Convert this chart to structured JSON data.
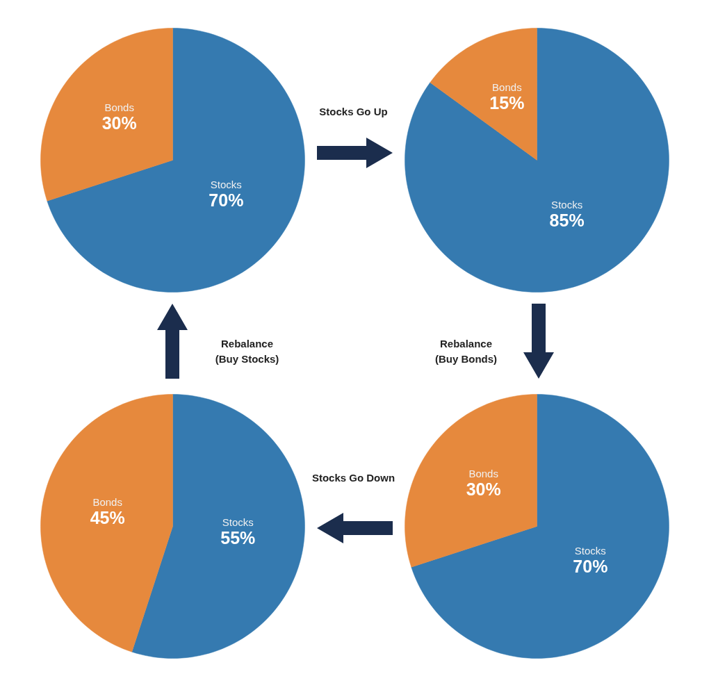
{
  "chart_data": [
    {
      "type": "pie",
      "categories": [
        "Stocks",
        "Bonds"
      ],
      "values": [
        70,
        30
      ],
      "colors": [
        "#357ab0",
        "#e6893d"
      ],
      "value_labels": [
        "70%",
        "30%"
      ],
      "annotations": [
        "Stocks Go Up"
      ]
    },
    {
      "type": "pie",
      "categories": [
        "Stocks",
        "Bonds"
      ],
      "values": [
        85,
        15
      ],
      "colors": [
        "#357ab0",
        "#e6893d"
      ],
      "value_labels": [
        "85%",
        "15%"
      ],
      "annotations": [
        "Rebalance\n(Buy Bonds)"
      ]
    },
    {
      "type": "pie",
      "categories": [
        "Stocks",
        "Bonds"
      ],
      "values": [
        55,
        45
      ],
      "colors": [
        "#357ab0",
        "#e6893d"
      ],
      "value_labels": [
        "55%",
        "45%"
      ],
      "annotations": [
        "Rebalance\n(Buy Stocks)"
      ]
    },
    {
      "type": "pie",
      "categories": [
        "Stocks",
        "Bonds"
      ],
      "values": [
        70,
        30
      ],
      "colors": [
        "#357ab0",
        "#e6893d"
      ],
      "value_labels": [
        "70%",
        "30%"
      ],
      "annotations": [
        "Stocks Go Down"
      ]
    }
  ]
}
